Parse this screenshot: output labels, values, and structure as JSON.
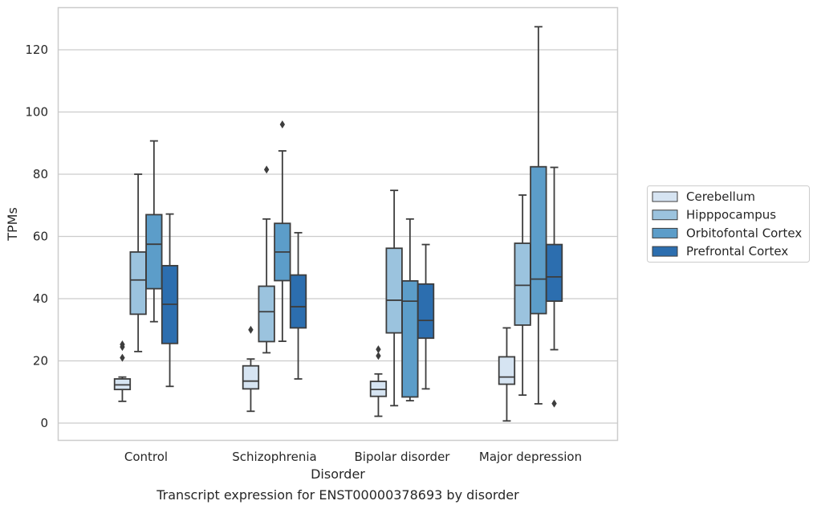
{
  "chart_data": {
    "type": "box",
    "caption": "Transcript expression for ENST00000378693 by disorder",
    "xlabel": "Disorder",
    "ylabel": "TPMs",
    "ylim": [
      -5.5,
      134
    ],
    "yticks": [
      0,
      20,
      40,
      60,
      80,
      100,
      120
    ],
    "grid": "horizontal",
    "legend_position": "right",
    "categories": [
      "Control",
      "Schizophrenia",
      "Bipolar disorder",
      "Major depression"
    ],
    "series": [
      {
        "name": "Cerebellum",
        "color": "#d6e4f2",
        "boxes": [
          {
            "whislo": 7,
            "q1": 10.8,
            "med": 12.3,
            "q3": 14.2,
            "whishi": 14.8,
            "fliers": [
              21,
              24.5,
              25.3
            ]
          },
          {
            "whislo": 3.8,
            "q1": 11,
            "med": 13.5,
            "q3": 18.4,
            "whishi": 20.6,
            "fliers": [
              30
            ]
          },
          {
            "whislo": 2.2,
            "q1": 8.6,
            "med": 10.8,
            "q3": 13.4,
            "whishi": 15.8,
            "fliers": [
              21.6,
              23.7
            ]
          },
          {
            "whislo": 0.7,
            "q1": 12.5,
            "med": 14.8,
            "q3": 21.3,
            "whishi": 30.6,
            "fliers": []
          }
        ]
      },
      {
        "name": "Hipppocampus",
        "color": "#9bc3de",
        "boxes": [
          {
            "whislo": 23,
            "q1": 35,
            "med": 46,
            "q3": 55,
            "whishi": 80,
            "fliers": []
          },
          {
            "whislo": 22.6,
            "q1": 26.2,
            "med": 35.8,
            "q3": 44,
            "whishi": 65.6,
            "fliers": [
              81.5
            ]
          },
          {
            "whislo": 5.6,
            "q1": 29,
            "med": 39.5,
            "q3": 56.2,
            "whishi": 74.8,
            "fliers": []
          },
          {
            "whislo": 9,
            "q1": 31.5,
            "med": 44.3,
            "q3": 57.8,
            "whishi": 73.3,
            "fliers": []
          }
        ]
      },
      {
        "name": "Orbitofontal Cortex",
        "color": "#5c9dc9",
        "boxes": [
          {
            "whislo": 32.6,
            "q1": 43.2,
            "med": 57.5,
            "q3": 67,
            "whishi": 90.7,
            "fliers": []
          },
          {
            "whislo": 26.3,
            "q1": 45.8,
            "med": 55,
            "q3": 64.2,
            "whishi": 87.5,
            "fliers": [
              96
            ]
          },
          {
            "whislo": 7.2,
            "q1": 8.4,
            "med": 39.2,
            "q3": 45.7,
            "whishi": 65.6,
            "fliers": []
          },
          {
            "whislo": 6.2,
            "q1": 35.2,
            "med": 46.3,
            "q3": 82.4,
            "whishi": 127.4,
            "fliers": []
          }
        ]
      },
      {
        "name": "Prefrontal Cortex",
        "color": "#2c6eaf",
        "boxes": [
          {
            "whislo": 11.8,
            "q1": 25.6,
            "med": 38.2,
            "q3": 50.6,
            "whishi": 67.2,
            "fliers": []
          },
          {
            "whislo": 14.2,
            "q1": 30.6,
            "med": 37.4,
            "q3": 47.6,
            "whishi": 61.2,
            "fliers": []
          },
          {
            "whislo": 11,
            "q1": 27.3,
            "med": 33,
            "q3": 44.7,
            "whishi": 57.4,
            "fliers": []
          },
          {
            "whislo": 23.6,
            "q1": 39.2,
            "med": 47,
            "q3": 57.4,
            "whishi": 82.2,
            "fliers": [
              6.3
            ]
          }
        ]
      }
    ]
  }
}
